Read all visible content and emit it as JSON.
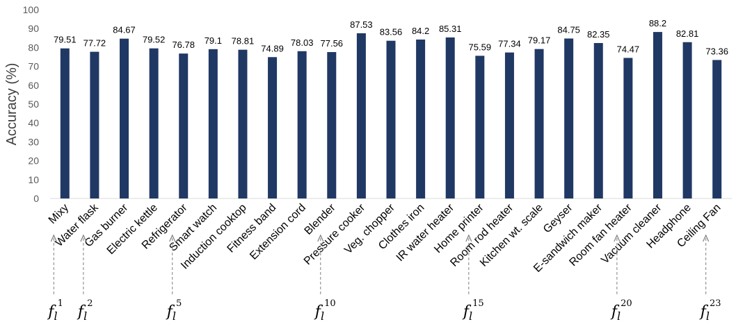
{
  "chart_data": {
    "type": "bar",
    "categories": [
      "Mixy",
      "Water flask",
      "Gas burner",
      "Electric kettle",
      "Refrigerator",
      "Smart watch",
      "Induction cooktop",
      "Fitness band",
      "Extension cord",
      "Blender",
      "Pressure cooker",
      "Veg. chopper",
      "Clothes iron",
      "IR water heater",
      "Home printer",
      "Room rod heater",
      "Kitchen wt. scale",
      "Geyser",
      "E-sandwich maker",
      "Room fan heater",
      "Vacuum cleaner",
      "Headphone",
      "Ceiling Fan"
    ],
    "values": [
      79.51,
      77.72,
      84.67,
      79.52,
      76.78,
      79.1,
      78.81,
      74.89,
      78.03,
      77.56,
      87.53,
      83.56,
      84.2,
      85.31,
      75.59,
      77.34,
      79.17,
      84.75,
      82.35,
      74.47,
      88.2,
      82.81,
      73.36
    ],
    "data_labels": [
      "79.51",
      "77.72",
      "84.67",
      "79.52",
      "76.78",
      "79.1",
      "78.81",
      "74.89",
      "78.03",
      "77.56",
      "87.53",
      "83.56",
      "84.2",
      "85.31",
      "75.59",
      "77.34",
      "79.17",
      "84.75",
      "82.35",
      "74.47",
      "88.2",
      "82.81",
      "73.36"
    ],
    "ylabel": "Accuracy (%)",
    "ylim": [
      0,
      100
    ],
    "yticks": [
      "0",
      "10",
      "20",
      "30",
      "40",
      "50",
      "60",
      "70",
      "80",
      "90",
      "100"
    ],
    "grid": false,
    "bar_color": "#203864",
    "annotations": [
      {
        "category_index": 0,
        "base": "f",
        "sub": "l",
        "sup": "1"
      },
      {
        "category_index": 1,
        "base": "f",
        "sub": "l",
        "sup": "2"
      },
      {
        "category_index": 4,
        "base": "f",
        "sub": "l",
        "sup": "5"
      },
      {
        "category_index": 9,
        "base": "f",
        "sub": "l",
        "sup": "10"
      },
      {
        "category_index": 14,
        "base": "f",
        "sub": "l",
        "sup": "15"
      },
      {
        "category_index": 19,
        "base": "f",
        "sub": "l",
        "sup": "20"
      },
      {
        "category_index": 22,
        "base": "f",
        "sub": "l",
        "sup": "23"
      }
    ]
  }
}
